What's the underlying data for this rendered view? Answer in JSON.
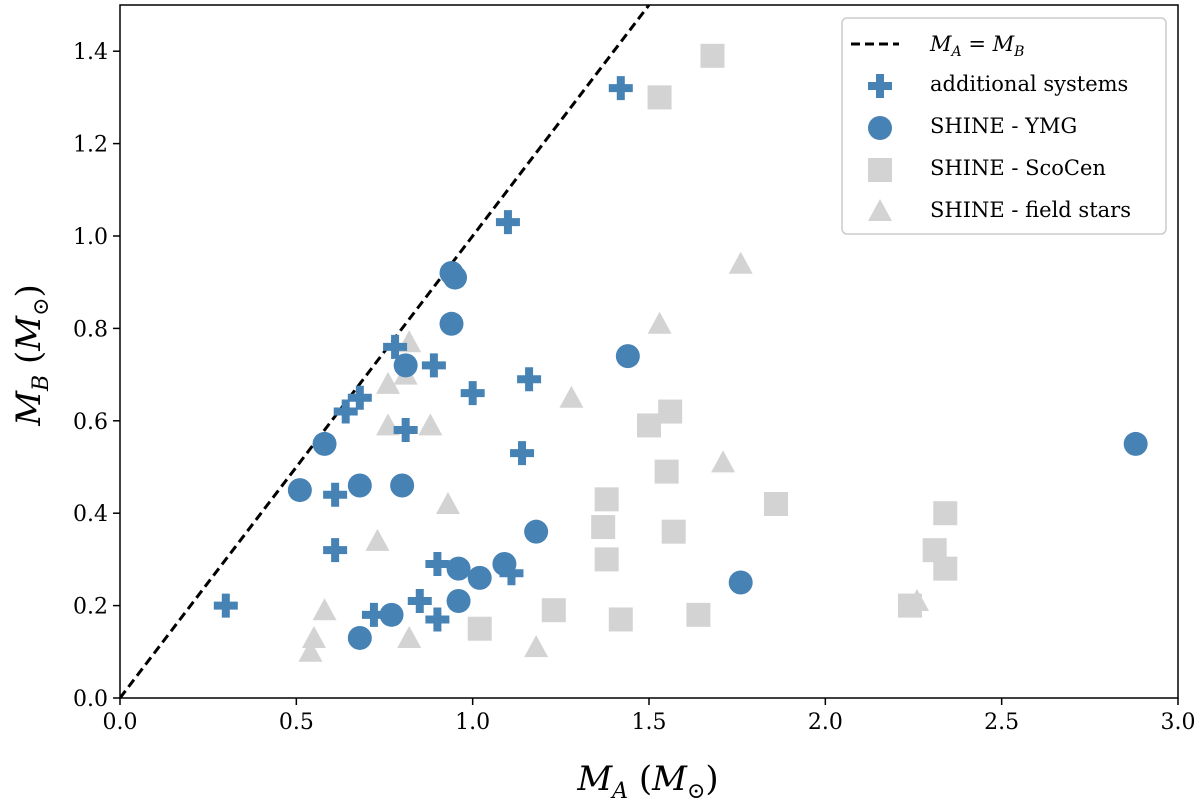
{
  "chart_data": {
    "type": "scatter",
    "xlabel": "M_A (M_⊙)",
    "ylabel": "M_B (M_⊙)",
    "xlim": [
      0.0,
      3.0
    ],
    "ylim": [
      0.0,
      1.5
    ],
    "xticks": [
      "0.0",
      "0.5",
      "1.0",
      "1.5",
      "2.0",
      "2.5",
      "3.0"
    ],
    "yticks": [
      "0.0",
      "0.2",
      "0.4",
      "0.6",
      "0.8",
      "1.0",
      "1.2",
      "1.4"
    ],
    "grid": false,
    "legend_position": "top-right",
    "reference_line": {
      "name": "M_A = M_B",
      "style": "dashed",
      "color": "#000000",
      "points": [
        [
          0,
          0
        ],
        [
          1.5,
          1.5
        ]
      ]
    },
    "series": [
      {
        "name": "SHINE - ScoCen",
        "marker": "square",
        "color": "#d3d3d3",
        "points": [
          [
            1.68,
            1.39
          ],
          [
            1.53,
            1.3
          ],
          [
            1.56,
            0.62
          ],
          [
            1.5,
            0.59
          ],
          [
            1.55,
            0.49
          ],
          [
            1.38,
            0.43
          ],
          [
            1.37,
            0.37
          ],
          [
            1.57,
            0.36
          ],
          [
            1.86,
            0.42
          ],
          [
            1.38,
            0.3
          ],
          [
            1.42,
            0.17
          ],
          [
            1.23,
            0.19
          ],
          [
            1.02,
            0.15
          ],
          [
            1.64,
            0.18
          ],
          [
            2.34,
            0.4
          ],
          [
            2.31,
            0.32
          ],
          [
            2.34,
            0.28
          ],
          [
            2.24,
            0.2
          ]
        ]
      },
      {
        "name": "SHINE - field stars",
        "marker": "triangle",
        "color": "#d3d3d3",
        "points": [
          [
            1.76,
            0.94
          ],
          [
            1.53,
            0.81
          ],
          [
            0.82,
            0.77
          ],
          [
            0.81,
            0.7
          ],
          [
            0.76,
            0.68
          ],
          [
            1.28,
            0.65
          ],
          [
            0.76,
            0.59
          ],
          [
            0.88,
            0.59
          ],
          [
            1.71,
            0.51
          ],
          [
            0.93,
            0.42
          ],
          [
            0.73,
            0.34
          ],
          [
            0.58,
            0.19
          ],
          [
            0.55,
            0.13
          ],
          [
            0.54,
            0.1
          ],
          [
            0.82,
            0.13
          ],
          [
            1.18,
            0.11
          ],
          [
            2.26,
            0.21
          ]
        ]
      },
      {
        "name": "SHINE - YMG",
        "marker": "circle",
        "color": "#4682b4",
        "points": [
          [
            0.94,
            0.92
          ],
          [
            0.95,
            0.91
          ],
          [
            0.94,
            0.81
          ],
          [
            1.44,
            0.74
          ],
          [
            0.81,
            0.72
          ],
          [
            0.58,
            0.55
          ],
          [
            0.51,
            0.45
          ],
          [
            0.68,
            0.46
          ],
          [
            0.8,
            0.46
          ],
          [
            1.18,
            0.36
          ],
          [
            0.96,
            0.28
          ],
          [
            1.02,
            0.26
          ],
          [
            1.09,
            0.29
          ],
          [
            0.96,
            0.21
          ],
          [
            0.77,
            0.18
          ],
          [
            0.68,
            0.13
          ],
          [
            1.76,
            0.25
          ],
          [
            2.88,
            0.55
          ]
        ]
      },
      {
        "name": "additional systems",
        "marker": "plus",
        "color": "#4682b4",
        "points": [
          [
            1.42,
            1.32
          ],
          [
            1.1,
            1.03
          ],
          [
            0.78,
            0.76
          ],
          [
            0.89,
            0.72
          ],
          [
            1.16,
            0.69
          ],
          [
            1.0,
            0.66
          ],
          [
            0.68,
            0.65
          ],
          [
            0.64,
            0.62
          ],
          [
            0.81,
            0.58
          ],
          [
            1.14,
            0.53
          ],
          [
            0.61,
            0.44
          ],
          [
            0.61,
            0.32
          ],
          [
            0.9,
            0.29
          ],
          [
            1.11,
            0.27
          ],
          [
            0.85,
            0.21
          ],
          [
            0.72,
            0.18
          ],
          [
            0.9,
            0.17
          ],
          [
            0.3,
            0.2
          ]
        ]
      }
    ],
    "legend": [
      {
        "label_parts": [
          "M",
          "A",
          " = ",
          "M",
          "B"
        ],
        "type": "line"
      },
      {
        "label": "additional systems",
        "type": "plus"
      },
      {
        "label": "SHINE - YMG",
        "type": "circle"
      },
      {
        "label": "SHINE - ScoCen",
        "type": "square"
      },
      {
        "label": "SHINE - field stars",
        "type": "triangle"
      }
    ]
  }
}
